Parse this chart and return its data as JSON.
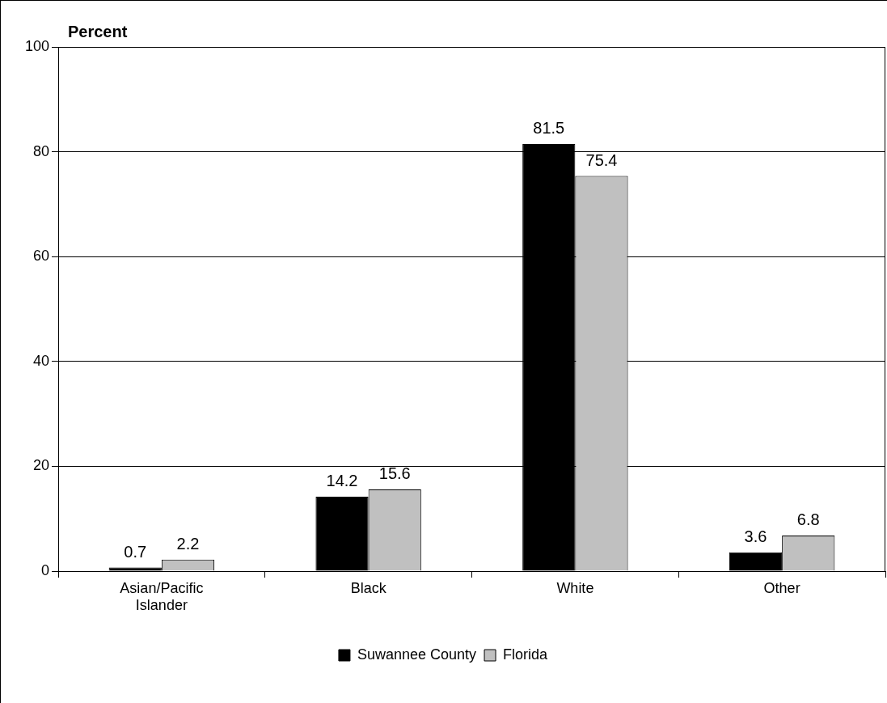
{
  "chart_data": {
    "type": "bar",
    "ylabel": "Percent",
    "categories": [
      "Asian/Pacific Islander",
      "Black",
      "White",
      "Other"
    ],
    "series": [
      {
        "name": "Suwannee County",
        "color": "#000000",
        "values": [
          0.7,
          14.2,
          81.5,
          3.6
        ]
      },
      {
        "name": "Florida",
        "color": "#c0c0c0",
        "values": [
          2.2,
          15.6,
          75.4,
          6.8
        ]
      }
    ],
    "ylim": [
      0,
      100
    ],
    "yticks": [
      0,
      20,
      40,
      60,
      80,
      100
    ],
    "grid": "y",
    "legend": "bottom",
    "data_labels": true
  }
}
